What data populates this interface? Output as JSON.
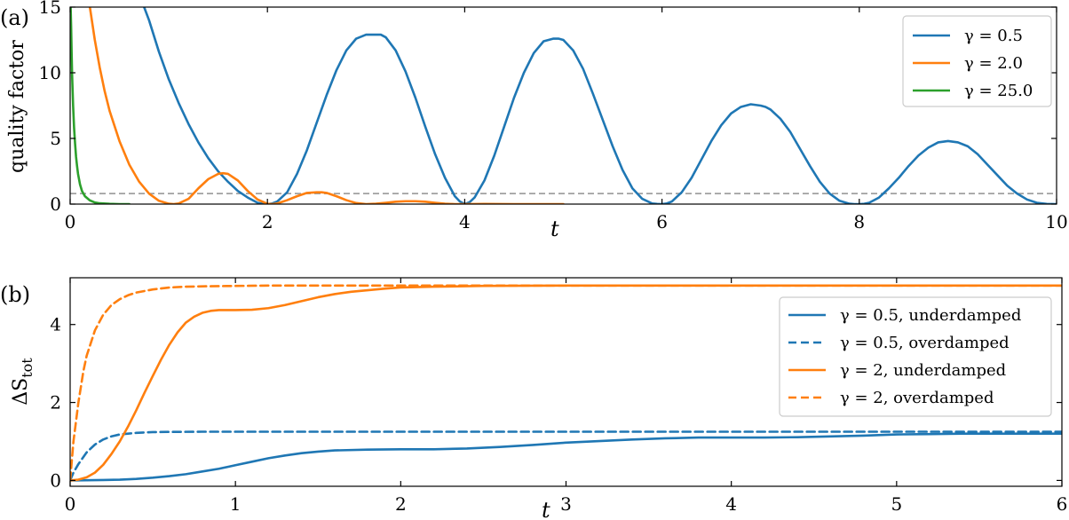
{
  "chart_data": [
    {
      "type": "line",
      "panel_label": "(a)",
      "xlabel": "t",
      "ylabel": "quality factor",
      "xlim": [
        0,
        10
      ],
      "ylim": [
        0,
        15
      ],
      "xticks": [
        "0",
        "2",
        "4",
        "6",
        "8",
        "10"
      ],
      "yticks": [
        "0",
        "5",
        "10",
        "15"
      ],
      "reference_line": {
        "y": 0.8,
        "style": "dashed",
        "color": "#a0a0a0"
      },
      "legend_position": "top-right",
      "series": [
        {
          "name": "γ = 0.5",
          "color": "#1f77b4",
          "style": "solid",
          "x": [
            0.75,
            0.8,
            0.9,
            1.0,
            1.1,
            1.2,
            1.3,
            1.4,
            1.5,
            1.6,
            1.7,
            1.8,
            1.9,
            1.95,
            2.0,
            2.05,
            2.1,
            2.2,
            2.3,
            2.4,
            2.5,
            2.6,
            2.7,
            2.8,
            2.9,
            3.0,
            3.1,
            3.15,
            3.2,
            3.3,
            3.4,
            3.5,
            3.6,
            3.7,
            3.8,
            3.9,
            3.95,
            4.0,
            4.05,
            4.1,
            4.2,
            4.3,
            4.4,
            4.5,
            4.6,
            4.7,
            4.8,
            4.9,
            4.95,
            5.0,
            5.1,
            5.2,
            5.3,
            5.4,
            5.5,
            5.6,
            5.7,
            5.8,
            5.9,
            5.95,
            6.0,
            6.05,
            6.1,
            6.2,
            6.3,
            6.4,
            6.5,
            6.6,
            6.7,
            6.8,
            6.9,
            7.0,
            7.05,
            7.1,
            7.2,
            7.3,
            7.4,
            7.5,
            7.6,
            7.7,
            7.8,
            7.9,
            7.95,
            8.0,
            8.05,
            8.1,
            8.2,
            8.3,
            8.4,
            8.5,
            8.6,
            8.7,
            8.8,
            8.9,
            8.95,
            9.0,
            9.1,
            9.2,
            9.3,
            9.4,
            9.5,
            9.6,
            9.7,
            9.8,
            9.9,
            10.0
          ],
          "y": [
            15,
            14,
            11.6,
            9.5,
            7.7,
            6.1,
            4.7,
            3.5,
            2.5,
            1.7,
            1.0,
            0.5,
            0.1,
            0.03,
            0.0,
            0.05,
            0.2,
            0.9,
            2.3,
            4.1,
            6.2,
            8.3,
            10.2,
            11.7,
            12.6,
            12.9,
            12.9,
            12.9,
            12.7,
            11.7,
            10.1,
            8.1,
            5.9,
            3.8,
            2.0,
            0.6,
            0.2,
            0.0,
            0.15,
            0.5,
            1.8,
            3.7,
            5.9,
            8.1,
            10.0,
            11.5,
            12.4,
            12.6,
            12.6,
            12.5,
            11.7,
            10.3,
            8.4,
            6.4,
            4.4,
            2.6,
            1.2,
            0.4,
            0.05,
            0.01,
            0.0,
            0.05,
            0.2,
            0.9,
            2.0,
            3.4,
            4.8,
            6.0,
            6.9,
            7.4,
            7.6,
            7.5,
            7.4,
            7.2,
            6.5,
            5.5,
            4.2,
            2.9,
            1.7,
            0.8,
            0.25,
            0.03,
            0.0,
            0.0,
            0.02,
            0.1,
            0.5,
            1.2,
            2.0,
            2.9,
            3.7,
            4.3,
            4.7,
            4.8,
            4.75,
            4.7,
            4.4,
            3.8,
            3.0,
            2.2,
            1.4,
            0.8,
            0.35,
            0.1,
            0.01,
            0.0
          ]
        },
        {
          "name": "γ = 2.0",
          "color": "#ff7f0e",
          "style": "solid",
          "x": [
            0.2,
            0.25,
            0.3,
            0.35,
            0.4,
            0.5,
            0.6,
            0.7,
            0.8,
            0.9,
            1.0,
            1.05,
            1.1,
            1.2,
            1.3,
            1.4,
            1.5,
            1.55,
            1.6,
            1.7,
            1.8,
            1.9,
            2.0,
            2.05,
            2.1,
            2.2,
            2.3,
            2.4,
            2.5,
            2.55,
            2.6,
            2.7,
            2.8,
            2.9,
            3.0,
            3.1,
            3.2,
            3.3,
            3.4,
            3.5,
            3.6,
            3.7,
            3.8,
            3.9,
            4.0,
            4.2,
            4.5,
            5.0
          ],
          "y": [
            15,
            12.5,
            10.4,
            8.6,
            7.1,
            4.8,
            3.0,
            1.7,
            0.8,
            0.25,
            0.03,
            0.0,
            0.05,
            0.4,
            1.2,
            1.9,
            2.3,
            2.35,
            2.3,
            1.8,
            1.0,
            0.35,
            0.02,
            0.0,
            0.05,
            0.3,
            0.6,
            0.85,
            0.9,
            0.9,
            0.85,
            0.6,
            0.3,
            0.08,
            0.0,
            0.03,
            0.1,
            0.18,
            0.22,
            0.22,
            0.18,
            0.1,
            0.03,
            0.0,
            0.0,
            0.01,
            0.0,
            0.0
          ]
        },
        {
          "name": "γ = 25.0",
          "color": "#2ca02c",
          "style": "solid",
          "x": [
            0.005,
            0.01,
            0.015,
            0.02,
            0.03,
            0.04,
            0.05,
            0.06,
            0.07,
            0.08,
            0.1,
            0.12,
            0.15,
            0.2,
            0.25,
            0.3,
            0.4,
            0.5,
            0.6
          ],
          "y": [
            15,
            13.5,
            11.5,
            9.8,
            7.5,
            5.8,
            4.6,
            3.6,
            2.9,
            2.3,
            1.5,
            1.0,
            0.6,
            0.28,
            0.12,
            0.06,
            0.02,
            0.0,
            0.0
          ]
        }
      ]
    },
    {
      "type": "line",
      "panel_label": "(b)",
      "xlabel": "t",
      "ylabel": "ΔS",
      "ylabel_subscript": "tot",
      "xlim": [
        0,
        6
      ],
      "ylim": [
        -0.15,
        5.2
      ],
      "xticks": [
        "0",
        "1",
        "2",
        "3",
        "4",
        "5",
        "6"
      ],
      "yticks": [
        "0",
        "2",
        "4"
      ],
      "legend_position": "right",
      "series": [
        {
          "name": "γ = 0.5, underdamped",
          "color": "#1f77b4",
          "style": "solid",
          "x": [
            0,
            0.1,
            0.2,
            0.3,
            0.4,
            0.5,
            0.6,
            0.7,
            0.8,
            0.9,
            1.0,
            1.1,
            1.2,
            1.3,
            1.4,
            1.5,
            1.6,
            1.8,
            2.0,
            2.2,
            2.4,
            2.6,
            2.8,
            3.0,
            3.2,
            3.4,
            3.6,
            3.8,
            4.0,
            4.2,
            4.4,
            4.6,
            4.8,
            5.0,
            5.2,
            5.4,
            5.6,
            5.8,
            6.0
          ],
          "y": [
            0,
            0.005,
            0.01,
            0.02,
            0.04,
            0.07,
            0.11,
            0.16,
            0.23,
            0.3,
            0.39,
            0.48,
            0.57,
            0.64,
            0.7,
            0.74,
            0.77,
            0.79,
            0.8,
            0.8,
            0.82,
            0.86,
            0.91,
            0.97,
            1.01,
            1.05,
            1.08,
            1.1,
            1.1,
            1.1,
            1.11,
            1.13,
            1.15,
            1.18,
            1.19,
            1.2,
            1.2,
            1.2,
            1.2
          ]
        },
        {
          "name": "γ = 0.5, overdamped",
          "color": "#1f77b4",
          "style": "dashed",
          "x": [
            0,
            0.02,
            0.05,
            0.1,
            0.15,
            0.2,
            0.25,
            0.3,
            0.35,
            0.4,
            0.5,
            0.6,
            0.8,
            1.0,
            1.5,
            2.0,
            3.0,
            4.0,
            5.0,
            6.0
          ],
          "y": [
            0,
            0.2,
            0.42,
            0.72,
            0.92,
            1.05,
            1.13,
            1.18,
            1.2,
            1.22,
            1.24,
            1.245,
            1.25,
            1.25,
            1.25,
            1.25,
            1.25,
            1.25,
            1.25,
            1.25
          ]
        },
        {
          "name": "γ = 2, underdamped",
          "color": "#ff7f0e",
          "style": "solid",
          "x": [
            0,
            0.05,
            0.1,
            0.15,
            0.2,
            0.25,
            0.3,
            0.35,
            0.4,
            0.45,
            0.5,
            0.55,
            0.6,
            0.65,
            0.7,
            0.75,
            0.8,
            0.85,
            0.9,
            0.95,
            1.0,
            1.1,
            1.2,
            1.3,
            1.4,
            1.5,
            1.6,
            1.7,
            1.8,
            1.9,
            2.0,
            2.2,
            2.5,
            3.0,
            3.5,
            4.0,
            5.0,
            6.0
          ],
          "y": [
            0,
            0.02,
            0.08,
            0.2,
            0.4,
            0.68,
            1.0,
            1.38,
            1.8,
            2.25,
            2.68,
            3.1,
            3.48,
            3.8,
            4.05,
            4.2,
            4.3,
            4.35,
            4.37,
            4.37,
            4.37,
            4.38,
            4.42,
            4.5,
            4.6,
            4.7,
            4.78,
            4.84,
            4.88,
            4.92,
            4.95,
            4.97,
            4.99,
            5.0,
            5.0,
            5.0,
            5.0,
            5.0
          ]
        },
        {
          "name": "γ = 2, overdamped",
          "color": "#ff7f0e",
          "style": "dashed",
          "x": [
            0,
            0.02,
            0.05,
            0.08,
            0.1,
            0.15,
            0.2,
            0.25,
            0.3,
            0.35,
            0.4,
            0.5,
            0.6,
            0.7,
            0.8,
            1.0,
            1.2,
            1.5,
            2.0,
            3.0,
            4.0,
            5.0,
            6.0
          ],
          "y": [
            0,
            1.0,
            2.0,
            2.8,
            3.2,
            3.85,
            4.25,
            4.5,
            4.65,
            4.75,
            4.82,
            4.9,
            4.95,
            4.97,
            4.98,
            4.99,
            5.0,
            5.0,
            5.0,
            5.0,
            5.0,
            5.0,
            5.0
          ]
        }
      ]
    }
  ]
}
